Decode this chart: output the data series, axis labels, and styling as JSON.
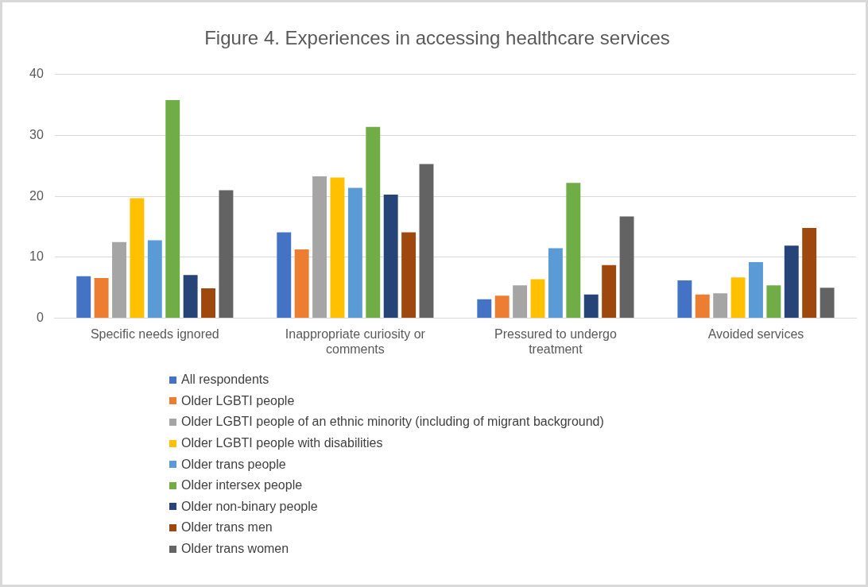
{
  "chart_data": {
    "type": "bar",
    "title": "Figure 4. Experiences in accessing healthcare services",
    "categories": [
      "Specific needs ignored",
      "Inappropriate curiosity or comments",
      "Pressured to undergo treatment",
      "Avoided services"
    ],
    "series": [
      {
        "name": "All respondents",
        "color": "#4472c4",
        "values": [
          6.9,
          14.1,
          3.1,
          6.2
        ]
      },
      {
        "name": "Older LGBTI people",
        "color": "#ed7d31",
        "values": [
          6.6,
          11.3,
          3.7,
          3.9
        ]
      },
      {
        "name": "Older LGBTI people of an ethnic minority (including of migrant background)",
        "color": "#a5a5a5",
        "values": [
          12.5,
          23.3,
          5.4,
          4.1
        ]
      },
      {
        "name": "Older LGBTI people with disabilities",
        "color": "#ffc000",
        "values": [
          19.7,
          23.1,
          6.4,
          6.7
        ]
      },
      {
        "name": "Older trans people",
        "color": "#5b9bd5",
        "values": [
          12.8,
          21.4,
          11.5,
          9.2
        ]
      },
      {
        "name": "Older intersex people",
        "color": "#70ad47",
        "values": [
          35.8,
          31.4,
          22.2,
          5.4
        ]
      },
      {
        "name": "Older non-binary people",
        "color": "#264478",
        "values": [
          7.1,
          20.3,
          3.9,
          11.9
        ]
      },
      {
        "name": "Older trans men",
        "color": "#9e480e",
        "values": [
          4.9,
          14.1,
          8.7,
          14.8
        ]
      },
      {
        "name": "Older trans women",
        "color": "#636363",
        "values": [
          21.0,
          25.3,
          16.7,
          5.0
        ]
      }
    ],
    "ylim": [
      0,
      40
    ],
    "yticks": [
      0,
      10,
      20,
      30,
      40
    ],
    "grid": "y",
    "legend": "bottom"
  }
}
